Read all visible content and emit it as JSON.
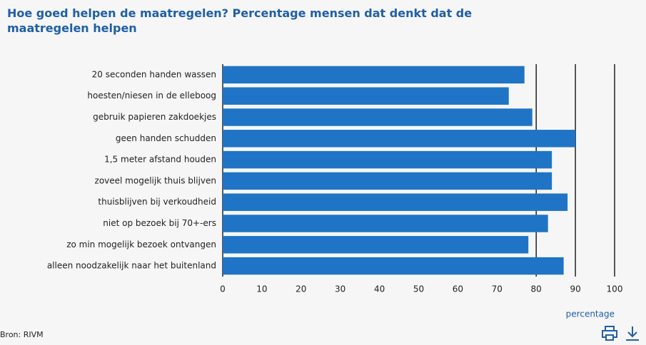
{
  "chart_data": {
    "type": "barh",
    "title": "Hoe goed helpen de maatregelen? Percentage mensen dat denkt dat de maatregelen helpen",
    "categories": [
      "20 seconden handen wassen",
      "hoesten/niesen in de elleboog",
      "gebruik papieren zakdoekjes",
      "geen handen schudden",
      "1,5 meter afstand houden",
      "zoveel mogelijk thuis blijven",
      "thuisblijven bij verkoudheid",
      "niet op bezoek bij 70+-ers",
      "zo min mogelijk bezoek ontvangen",
      "alleen noodzakelijk naar het buitenland"
    ],
    "values": [
      77,
      73,
      79,
      90,
      84,
      84,
      88,
      83,
      78,
      87
    ],
    "color": "#1f74c6",
    "xlim": [
      0,
      100
    ],
    "xticks": [
      0,
      10,
      20,
      30,
      40,
      50,
      60,
      70,
      80,
      90,
      100
    ],
    "grid_at": [
      80,
      90,
      100
    ],
    "xlabel": "percentage",
    "source": "Bron: RIVM"
  }
}
